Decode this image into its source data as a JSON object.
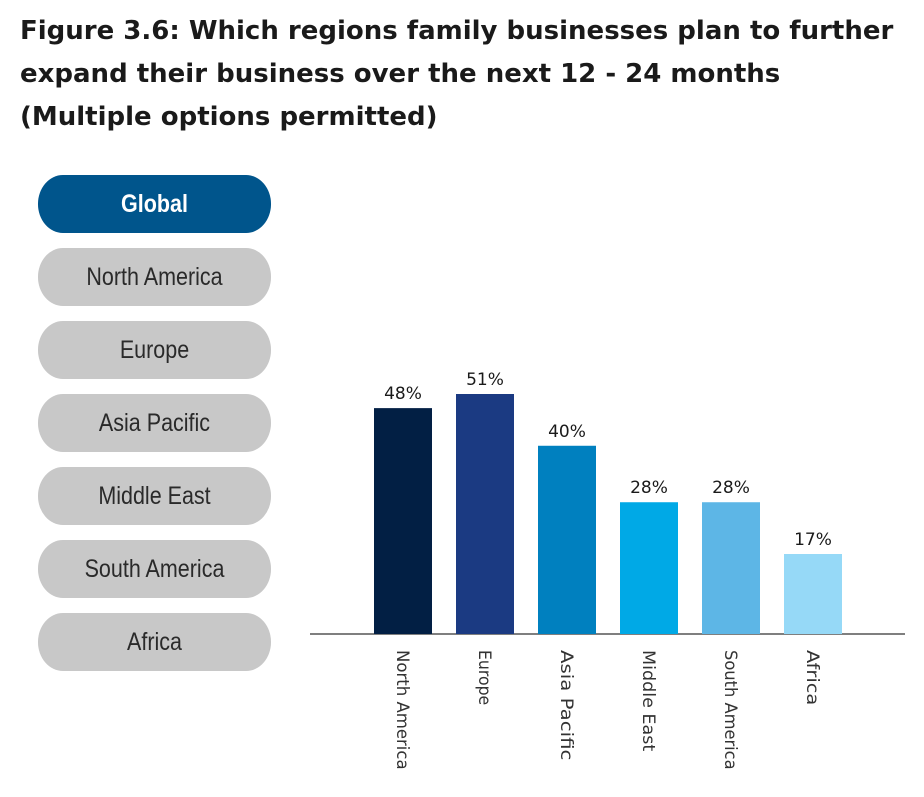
{
  "title": {
    "figure_label": "Figure 3.6:",
    "text": " Which regions family businesses plan to further expand their business over the next 12 - 24 months (Multiple options permitted)"
  },
  "filters": {
    "active_index": 0,
    "items": [
      "Global",
      "North America",
      "Europe",
      "Asia Pacific",
      "Middle East",
      "South America",
      "Africa"
    ]
  },
  "colors": {
    "active_pill": "#00558c",
    "inactive_pill": "#c8c8c8",
    "axis": "#555555"
  },
  "chart_data": {
    "type": "bar",
    "categories": [
      "North America",
      "Europe",
      "Asia Pacific",
      "Middle East",
      "South America",
      "Africa"
    ],
    "values": [
      48,
      51,
      40,
      28,
      28,
      17
    ],
    "value_labels": [
      "48%",
      "51%",
      "40%",
      "28%",
      "28%",
      "17%"
    ],
    "colors": [
      "#021f44",
      "#1b3a82",
      "#0080bf",
      "#00a9e6",
      "#5db6e6",
      "#96d9f7"
    ],
    "ylim": [
      0,
      51
    ],
    "unit": "%",
    "grid": false,
    "legend": "none",
    "xlabel": "",
    "ylabel": ""
  }
}
